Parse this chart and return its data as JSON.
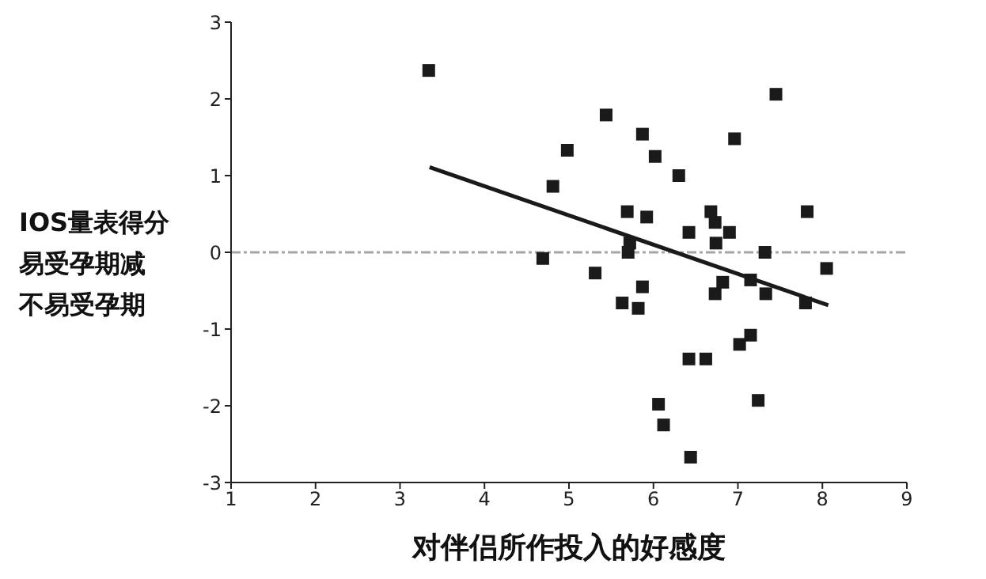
{
  "chart_data": {
    "type": "scatter",
    "xlabel": "对伴侣所作投入的好感度",
    "ylabel": "IOS量表得分易受孕期减不易受孕期",
    "xlim": [
      1,
      9
    ],
    "xticks": [
      1,
      2,
      3,
      4,
      5,
      6,
      7,
      8,
      9
    ],
    "ylim": [
      -3,
      3
    ],
    "yticks": [
      -3,
      -2,
      -1,
      0,
      1,
      2,
      3
    ],
    "grid": false,
    "legend": false,
    "marker": "square",
    "series": [
      {
        "color": "#1a1a1a",
        "x": [
          3.34,
          5.44,
          5.87,
          4.98,
          6.02,
          6.3,
          4.81,
          7.45,
          6.96,
          5.69,
          5.92,
          6.68,
          6.73,
          6.42,
          6.9,
          6.74,
          5.72,
          5.7,
          7.32,
          7.82,
          4.69,
          5.31,
          8.05,
          5.87,
          6.82,
          7.15,
          6.73,
          7.33,
          7.8,
          5.63,
          5.82,
          7.15,
          7.02,
          6.42,
          6.62,
          7.24,
          6.06,
          6.12,
          6.44
        ],
        "values": [
          2.37,
          1.79,
          1.54,
          1.33,
          1.25,
          1.0,
          0.86,
          2.06,
          1.48,
          0.53,
          0.46,
          0.53,
          0.39,
          0.26,
          0.26,
          0.12,
          0.12,
          0.0,
          0.0,
          0.53,
          -0.08,
          -0.27,
          -0.21,
          -0.45,
          -0.39,
          -0.36,
          -0.54,
          -0.54,
          -0.66,
          -0.66,
          -0.73,
          -1.08,
          -1.2,
          -1.39,
          -1.39,
          -1.93,
          -1.98,
          -2.25,
          -2.67
        ]
      },
      {
        "type": "line",
        "color": "#1a1a1a",
        "marker": "none",
        "x": [
          3.35,
          8.07
        ],
        "values": [
          1.11,
          -0.69
        ]
      }
    ],
    "ref_lines": [
      {
        "axis": "y",
        "value": 0,
        "color": "#a6a6a6",
        "line_style": "dashed"
      }
    ]
  }
}
